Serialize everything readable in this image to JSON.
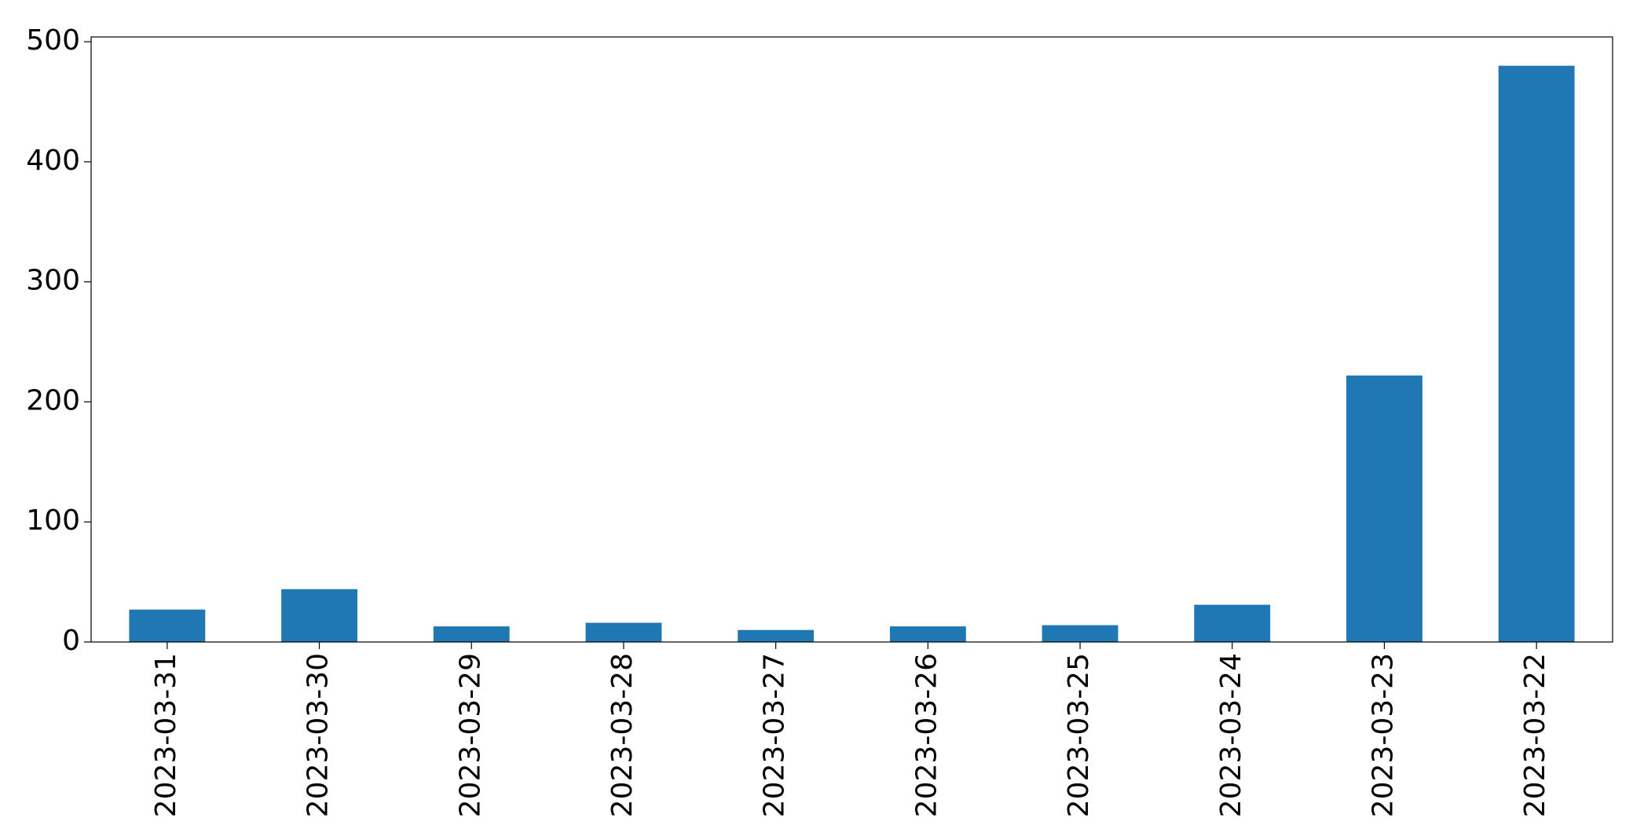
{
  "chart_data": {
    "type": "bar",
    "categories": [
      "2023-03-31",
      "2023-03-30",
      "2023-03-29",
      "2023-03-28",
      "2023-03-27",
      "2023-03-26",
      "2023-03-25",
      "2023-03-24",
      "2023-03-23",
      "2023-03-22"
    ],
    "values": [
      27,
      44,
      13,
      16,
      10,
      13,
      14,
      31,
      222,
      480
    ],
    "color": "#1f77b4",
    "ylim": [
      0,
      504
    ],
    "yticks": [
      0,
      100,
      200,
      300,
      400,
      500
    ],
    "grid": false
  }
}
